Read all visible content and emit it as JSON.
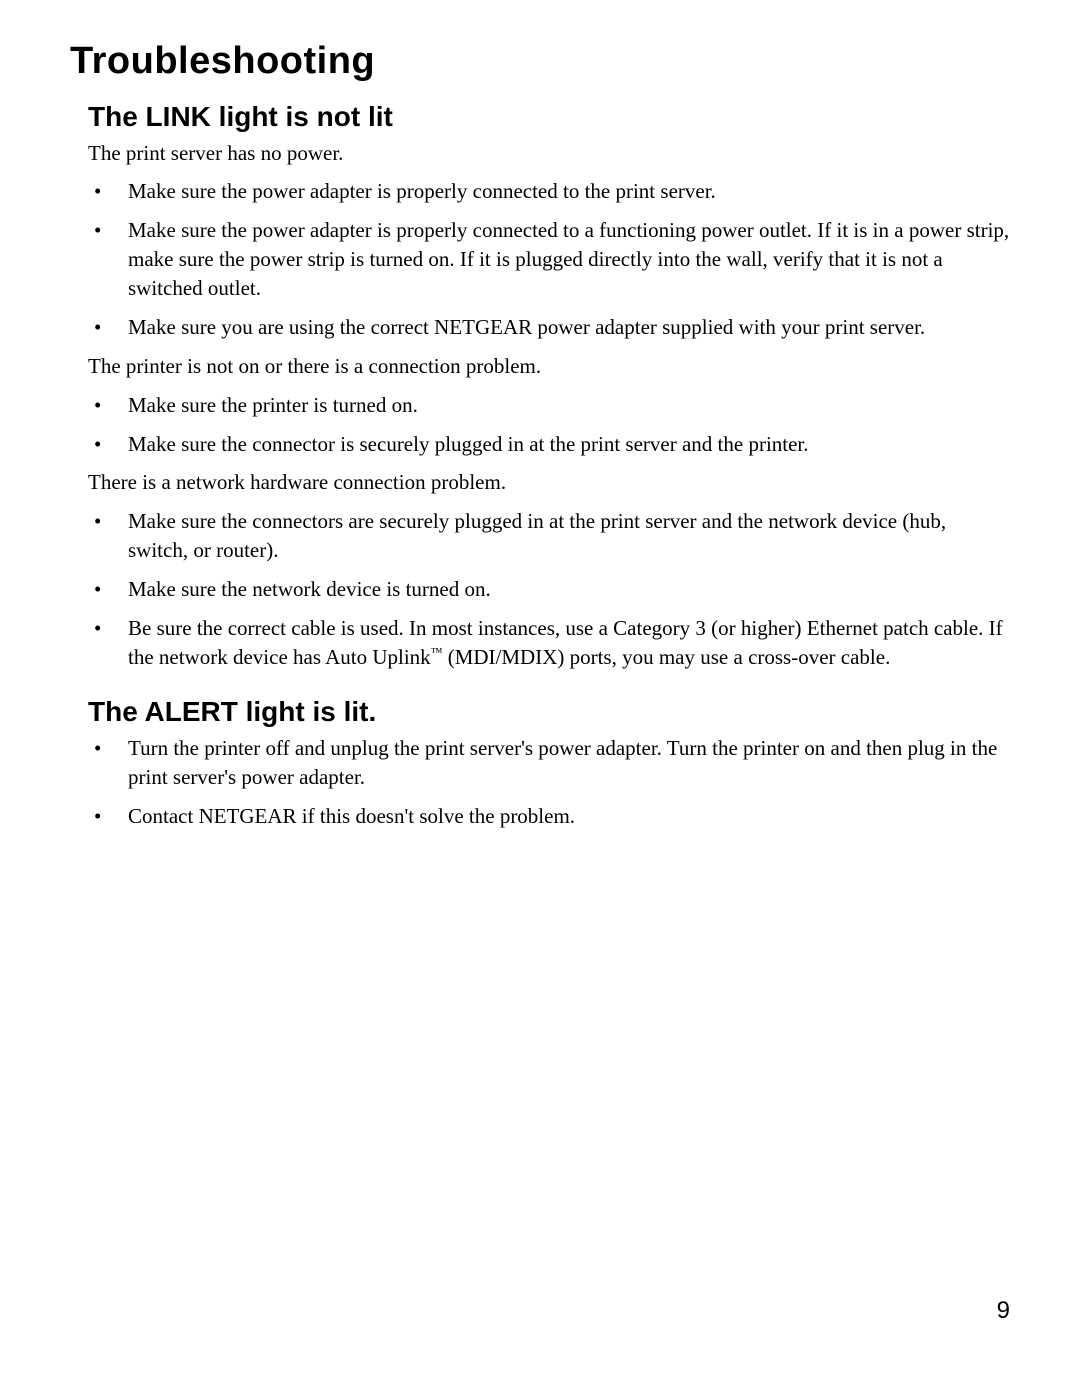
{
  "h1": "Troubleshooting",
  "h2a": "The LINK light is not lit",
  "p1": "The print server has no power.",
  "list1": {
    "i0": "Make sure the power adapter is properly connected to the print server.",
    "i1": "Make sure the power adapter is properly connected to a functioning power outlet. If it is in a power strip, make sure the power strip is turned on. If it is plugged directly into the wall, verify that it is not a switched outlet.",
    "i2": "Make sure you are using the correct NETGEAR power adapter supplied with your print server."
  },
  "p2": "The printer is not on or there is a connection problem.",
  "list2": {
    "i0": "Make sure the printer is turned on.",
    "i1": "Make sure the connector is securely plugged in at the print server and the printer."
  },
  "p3": "There is a network hardware connection problem.",
  "list3": {
    "i0": "Make sure the connectors are securely plugged in at the print server and the network device (hub, switch, or router).",
    "i1": "Make sure the network device is turned on.",
    "i2a": "Be sure the correct cable is used. In most instances, use a Category 3 (or higher) Ethernet patch cable. If the network device has Auto Uplink",
    "i2tm": "™",
    "i2b": " (MDI/MDIX) ports, you may use a cross-over cable."
  },
  "h2b": "The ALERT light is lit.",
  "list4": {
    "i0": "Turn the printer off and unplug the print server's power adapter. Turn the printer on and then plug in the print server's power adapter.",
    "i1": "Contact NETGEAR if this doesn't solve the problem."
  },
  "pageNumber": "9"
}
